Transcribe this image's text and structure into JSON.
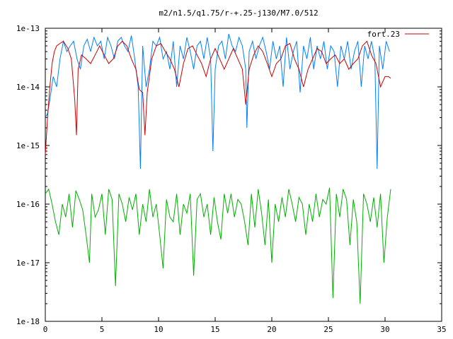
{
  "chart_data": {
    "type": "line",
    "title": "m2/n1.5/q1.75/r-+.25-j130/M7.0/512",
    "xlabel": "",
    "ylabel": "",
    "x_ticks": [
      "0",
      "5",
      "10",
      "15",
      "20",
      "25",
      "30",
      "35"
    ],
    "y_ticks": [
      "1e-18",
      "1e-17",
      "1e-16",
      "1e-15",
      "1e-14",
      "1e-13"
    ],
    "xlim": [
      0,
      35
    ],
    "ylim": [
      1e-18,
      1e-13
    ],
    "yscale": "log",
    "grid": false,
    "legend": {
      "position": "top-right"
    },
    "series": [
      {
        "name": "fort.23",
        "color": "#cc0000",
        "x": [
          0,
          0.2,
          0.4,
          0.6,
          0.8,
          1.0,
          1.3,
          1.6,
          2.0,
          2.3,
          2.6,
          2.75,
          2.9,
          3.2,
          3.6,
          4.0,
          4.4,
          4.8,
          5.2,
          5.6,
          6.0,
          6.4,
          6.8,
          7.2,
          7.6,
          8.0,
          8.3,
          8.6,
          8.8,
          9.0,
          9.4,
          9.8,
          10.2,
          10.6,
          11.0,
          11.4,
          11.8,
          12.2,
          12.6,
          13.0,
          13.4,
          13.8,
          14.2,
          14.6,
          15.0,
          15.4,
          15.8,
          16.2,
          16.6,
          17.0,
          17.4,
          17.7,
          18.0,
          18.4,
          18.8,
          19.2,
          19.6,
          20.0,
          20.4,
          20.8,
          21.2,
          21.6,
          22.0,
          22.4,
          22.8,
          23.2,
          23.6,
          24.0,
          24.4,
          24.8,
          25.2,
          25.6,
          26.0,
          26.4,
          26.8,
          27.2,
          27.6,
          28.0,
          28.4,
          28.8,
          29.2,
          29.6,
          30.0,
          30.3,
          30.5
        ],
        "y": [
          7e-16,
          3e-15,
          1e-14,
          2.5e-14,
          4e-14,
          5e-14,
          5.5e-14,
          6e-14,
          4.5e-14,
          3e-14,
          6e-15,
          1.5e-15,
          2e-14,
          3.5e-14,
          3e-14,
          2.5e-14,
          3.5e-14,
          5e-14,
          3.5e-14,
          2.5e-14,
          3e-14,
          5e-14,
          6e-14,
          5e-14,
          3e-14,
          2e-14,
          9e-15,
          8e-15,
          1.5e-15,
          8e-15,
          3e-14,
          5e-14,
          5.5e-14,
          4e-14,
          3e-14,
          2e-14,
          1e-14,
          2.5e-14,
          4.5e-14,
          5e-14,
          3.5e-14,
          2.5e-14,
          1.5e-14,
          3e-14,
          4.5e-14,
          3e-14,
          2e-14,
          3e-14,
          4.5e-14,
          3e-14,
          2e-14,
          5e-15,
          2e-14,
          3.5e-14,
          5e-14,
          4e-14,
          2.5e-14,
          1.5e-14,
          2.5e-14,
          3e-14,
          5e-14,
          5.5e-14,
          3e-14,
          2e-14,
          1e-14,
          2e-14,
          3e-14,
          4.5e-14,
          4e-14,
          2.5e-14,
          3e-14,
          3.5e-14,
          2.5e-14,
          3e-14,
          2e-14,
          2.5e-14,
          3e-14,
          5e-14,
          6e-14,
          3.5e-14,
          2.5e-14,
          1e-14,
          1.5e-14,
          1.5e-14,
          1.4e-14
        ]
      },
      {
        "color": "#0080ff",
        "x": [
          0,
          0.2,
          0.4,
          0.7,
          1.0,
          1.3,
          1.6,
          1.9,
          2.2,
          2.5,
          2.8,
          3.1,
          3.4,
          3.7,
          4.0,
          4.3,
          4.6,
          4.9,
          5.2,
          5.5,
          5.8,
          6.1,
          6.4,
          6.7,
          7.0,
          7.3,
          7.6,
          7.9,
          8.2,
          8.4,
          8.6,
          8.9,
          9.2,
          9.5,
          9.8,
          10.1,
          10.4,
          10.7,
          11.0,
          11.3,
          11.6,
          11.9,
          12.2,
          12.5,
          12.8,
          13.1,
          13.4,
          13.7,
          14.0,
          14.3,
          14.6,
          14.8,
          15.0,
          15.3,
          15.6,
          15.9,
          16.2,
          16.5,
          16.8,
          17.1,
          17.4,
          17.7,
          17.8,
          18.0,
          18.3,
          18.6,
          18.9,
          19.2,
          19.5,
          19.8,
          20.1,
          20.4,
          20.7,
          21.0,
          21.3,
          21.6,
          21.9,
          22.2,
          22.5,
          22.8,
          23.1,
          23.4,
          23.7,
          24.0,
          24.3,
          24.6,
          24.9,
          25.2,
          25.5,
          25.8,
          26.1,
          26.4,
          26.7,
          27.0,
          27.3,
          27.6,
          27.9,
          28.2,
          28.5,
          28.8,
          29.1,
          29.3,
          29.5,
          29.8,
          30.1,
          30.4
        ],
        "y": [
          3e-15,
          3.5e-15,
          6e-15,
          1.5e-14,
          1e-14,
          3e-14,
          6e-14,
          4e-14,
          5e-14,
          6e-14,
          3e-14,
          2e-14,
          5e-14,
          6.5e-14,
          4e-14,
          7e-14,
          5e-14,
          6e-14,
          3e-14,
          7e-14,
          5e-14,
          3e-14,
          6e-14,
          7e-14,
          5e-14,
          4e-14,
          7.5e-14,
          3e-14,
          1e-14,
          4e-16,
          5e-14,
          1e-14,
          2e-14,
          6e-14,
          5e-14,
          7e-14,
          3e-14,
          4e-14,
          2e-14,
          6e-14,
          1e-14,
          5e-14,
          3e-14,
          7e-14,
          4e-14,
          2e-14,
          5e-14,
          6e-14,
          3e-14,
          7e-14,
          3e-14,
          8e-16,
          2e-14,
          5e-14,
          6e-14,
          3e-14,
          8e-14,
          5e-14,
          4e-14,
          7e-14,
          5e-14,
          2e-14,
          2e-15,
          4e-14,
          6e-14,
          3e-14,
          5e-14,
          7e-14,
          4e-14,
          2e-14,
          6e-14,
          3e-14,
          5e-14,
          1e-14,
          7e-14,
          2e-14,
          4e-14,
          6e-14,
          8e-15,
          5e-14,
          3e-14,
          7e-14,
          2e-14,
          5e-14,
          3e-14,
          6e-14,
          2e-14,
          5e-14,
          4e-14,
          1e-14,
          5e-14,
          3e-14,
          6e-14,
          2e-14,
          4e-14,
          6e-14,
          1e-14,
          5e-14,
          3e-14,
          6e-14,
          3e-14,
          4e-16,
          5e-14,
          2e-14,
          6e-14,
          4e-14
        ]
      },
      {
        "color": "#00b000",
        "x": [
          0,
          0.3,
          0.6,
          0.9,
          1.2,
          1.5,
          1.8,
          2.1,
          2.4,
          2.7,
          3.0,
          3.3,
          3.6,
          3.9,
          4.1,
          4.4,
          4.7,
          5.0,
          5.3,
          5.6,
          5.9,
          6.2,
          6.5,
          6.8,
          7.1,
          7.4,
          7.7,
          8.0,
          8.3,
          8.6,
          8.9,
          9.2,
          9.5,
          9.8,
          10.1,
          10.4,
          10.7,
          11.0,
          11.3,
          11.6,
          11.9,
          12.2,
          12.5,
          12.8,
          13.1,
          13.4,
          13.7,
          14.0,
          14.3,
          14.6,
          14.9,
          15.2,
          15.5,
          15.8,
          16.1,
          16.4,
          16.7,
          17.0,
          17.3,
          17.6,
          17.9,
          18.2,
          18.5,
          18.8,
          19.1,
          19.4,
          19.7,
          20.0,
          20.3,
          20.6,
          20.9,
          21.2,
          21.5,
          21.8,
          22.1,
          22.4,
          22.7,
          23.0,
          23.3,
          23.6,
          23.9,
          24.2,
          24.5,
          24.8,
          25.1,
          25.4,
          25.7,
          26.0,
          26.3,
          26.6,
          26.9,
          27.2,
          27.5,
          27.8,
          28.1,
          28.4,
          28.7,
          29.0,
          29.3,
          29.6,
          29.9,
          30.2,
          30.5
        ],
        "y": [
          1.5e-16,
          1.8e-16,
          1e-16,
          5e-17,
          3e-17,
          1e-16,
          6e-17,
          1.5e-16,
          4e-17,
          1.7e-16,
          1.2e-16,
          8e-17,
          3e-17,
          1e-17,
          1.5e-16,
          6e-17,
          8e-17,
          1.5e-16,
          3e-17,
          1.8e-16,
          1.2e-16,
          4e-18,
          1.5e-16,
          1e-16,
          5e-17,
          1.3e-16,
          8e-17,
          1.5e-16,
          3e-17,
          1e-16,
          5e-17,
          1.8e-16,
          6e-17,
          1e-16,
          3e-17,
          8e-18,
          1.2e-16,
          6e-17,
          5e-17,
          1.5e-16,
          3e-17,
          1e-16,
          7e-17,
          1.5e-16,
          6e-18,
          1.2e-16,
          1.5e-16,
          6e-17,
          1e-16,
          3e-17,
          1.3e-16,
          5e-17,
          2.5e-17,
          1.5e-16,
          7e-17,
          1.5e-16,
          6e-17,
          1.2e-16,
          1e-16,
          5e-17,
          2e-17,
          1.5e-16,
          4e-17,
          1.8e-16,
          7e-17,
          2e-17,
          1.2e-16,
          1e-17,
          1e-16,
          5e-17,
          1.3e-16,
          6e-17,
          1.8e-16,
          1e-16,
          5e-17,
          1.3e-16,
          1e-16,
          3e-17,
          1e-16,
          5e-17,
          1.5e-16,
          6e-17,
          1.2e-16,
          1e-16,
          1.9e-16,
          2.5e-18,
          1.5e-16,
          6e-17,
          1.8e-16,
          1.2e-16,
          2e-17,
          1.2e-16,
          5e-17,
          2e-18,
          1.5e-16,
          1e-16,
          5e-17,
          1.3e-16,
          4e-17,
          1.5e-16,
          1e-17,
          6e-17,
          1.8e-16
        ]
      }
    ]
  }
}
